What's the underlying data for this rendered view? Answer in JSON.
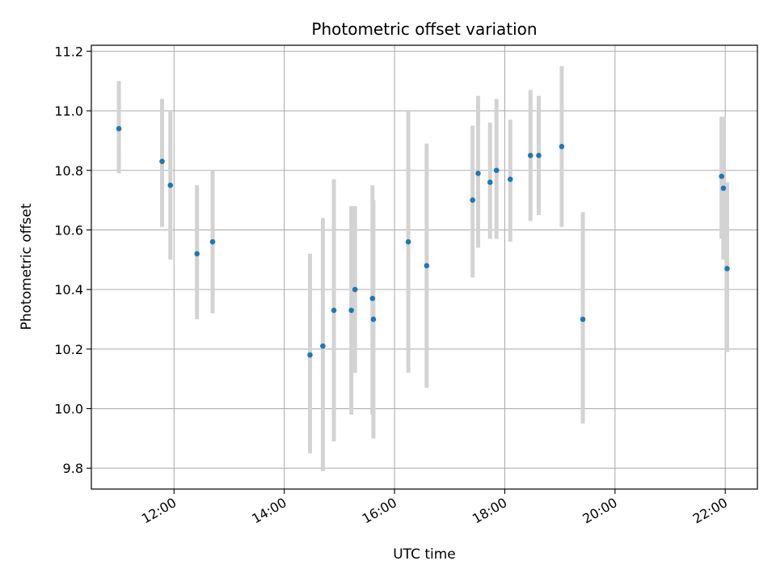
{
  "chart_data": {
    "type": "scatter",
    "title": "Photometric offset variation",
    "xlabel": "UTC time",
    "ylabel": "Photometric offset",
    "x_ticks": [
      "12:00",
      "14:00",
      "16:00",
      "18:00",
      "20:00",
      "22:00"
    ],
    "y_ticks": [
      "9.8",
      "10.0",
      "10.2",
      "10.4",
      "10.6",
      "10.8",
      "11.0",
      "11.2"
    ],
    "xlim": [
      "10:30",
      "22:35"
    ],
    "ylim": [
      9.73,
      11.22
    ],
    "grid": true,
    "marker_color": "#1f77b4",
    "errorbar_color": "#d3d3d3",
    "points": [
      {
        "x": "11:00",
        "y": 10.94,
        "low": 10.79,
        "high": 11.1
      },
      {
        "x": "11:47",
        "y": 10.83,
        "low": 10.61,
        "high": 11.04
      },
      {
        "x": "11:56",
        "y": 10.75,
        "low": 10.5,
        "high": 11.0
      },
      {
        "x": "12:25",
        "y": 10.52,
        "low": 10.3,
        "high": 10.75
      },
      {
        "x": "12:42",
        "y": 10.56,
        "low": 10.32,
        "high": 10.8
      },
      {
        "x": "14:28",
        "y": 10.18,
        "low": 9.85,
        "high": 10.52
      },
      {
        "x": "14:42",
        "y": 10.21,
        "low": 9.79,
        "high": 10.64
      },
      {
        "x": "14:54",
        "y": 10.33,
        "low": 9.89,
        "high": 10.77
      },
      {
        "x": "15:13",
        "y": 10.33,
        "low": 9.98,
        "high": 10.68
      },
      {
        "x": "15:17",
        "y": 10.4,
        "low": 10.12,
        "high": 10.68
      },
      {
        "x": "15:36",
        "y": 10.37,
        "low": 9.98,
        "high": 10.75
      },
      {
        "x": "15:37",
        "y": 10.3,
        "low": 9.9,
        "high": 10.7
      },
      {
        "x": "16:15",
        "y": 10.56,
        "low": 10.12,
        "high": 11.0
      },
      {
        "x": "16:35",
        "y": 10.48,
        "low": 10.07,
        "high": 10.89
      },
      {
        "x": "17:25",
        "y": 10.7,
        "low": 10.44,
        "high": 10.95
      },
      {
        "x": "17:31",
        "y": 10.79,
        "low": 10.54,
        "high": 11.05
      },
      {
        "x": "17:44",
        "y": 10.76,
        "low": 10.57,
        "high": 10.96
      },
      {
        "x": "17:51",
        "y": 10.8,
        "low": 10.57,
        "high": 11.04
      },
      {
        "x": "18:06",
        "y": 10.77,
        "low": 10.56,
        "high": 10.97
      },
      {
        "x": "18:28",
        "y": 10.85,
        "low": 10.63,
        "high": 11.07
      },
      {
        "x": "18:37",
        "y": 10.85,
        "low": 10.65,
        "high": 11.05
      },
      {
        "x": "19:02",
        "y": 10.88,
        "low": 10.61,
        "high": 11.15
      },
      {
        "x": "19:25",
        "y": 10.3,
        "low": 9.95,
        "high": 10.66
      },
      {
        "x": "21:56",
        "y": 10.78,
        "low": 10.57,
        "high": 10.98
      },
      {
        "x": "21:58",
        "y": 10.74,
        "low": 10.5,
        "high": 10.98
      },
      {
        "x": "22:02",
        "y": 10.47,
        "low": 10.19,
        "high": 10.76
      }
    ]
  }
}
